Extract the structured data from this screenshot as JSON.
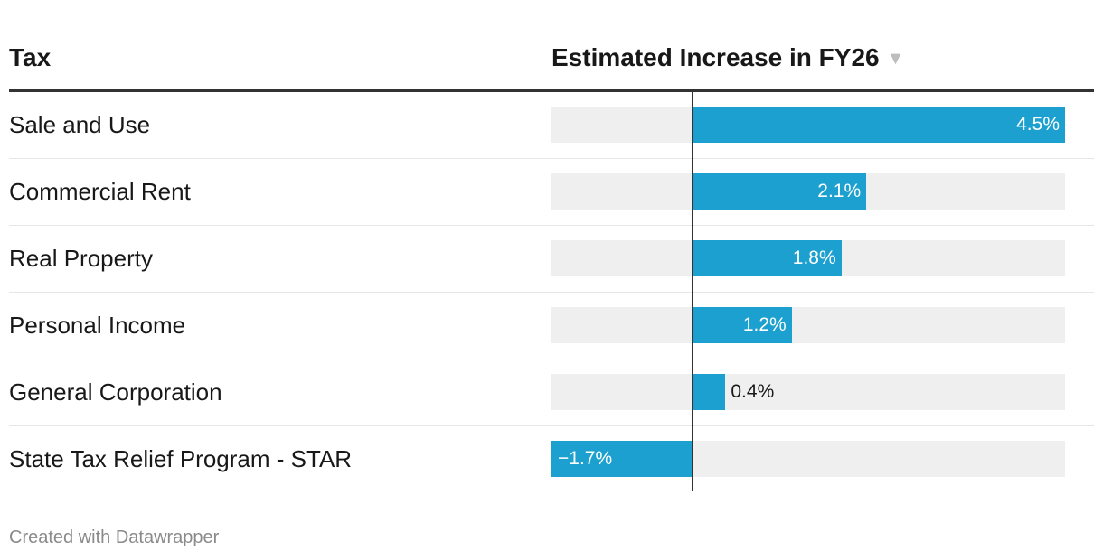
{
  "header": {
    "col_label": "Tax",
    "col_value": "Estimated Increase in FY26",
    "sort_icon": "sort-descending-icon"
  },
  "chart_data": {
    "type": "bar",
    "orientation": "horizontal",
    "categories": [
      "Sale and Use",
      "Commercial Rent",
      "Real Property",
      "Personal Income",
      "General Corporation",
      "State Tax Relief Program - STAR"
    ],
    "values": [
      4.5,
      2.1,
      1.8,
      1.2,
      0.4,
      -1.7
    ],
    "value_labels": [
      "4.5%",
      "2.1%",
      "1.8%",
      "1.2%",
      "0.4%",
      "−1.7%"
    ],
    "xlim": [
      -1.7,
      4.5
    ],
    "bar_color": "#1ba0cf",
    "track_color": "#efefef"
  },
  "footer": {
    "credit": "Created with Datawrapper"
  }
}
